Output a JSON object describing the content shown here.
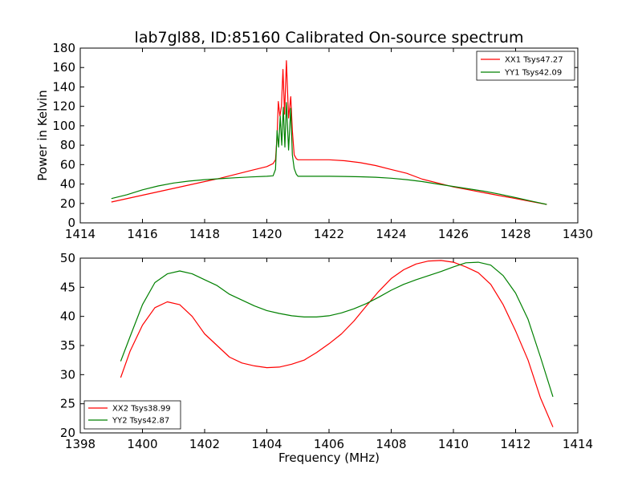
{
  "chart_data": [
    {
      "type": "line",
      "title": "lab7gl88, ID:85160 Calibrated On-source spectrum",
      "xlabel": "",
      "ylabel": "Power in Kelvin",
      "xlim": [
        1414,
        1430
      ],
      "ylim": [
        0,
        180
      ],
      "xticks": [
        1414,
        1416,
        1418,
        1420,
        1422,
        1424,
        1426,
        1428,
        1430
      ],
      "yticks": [
        0,
        20,
        40,
        60,
        80,
        100,
        120,
        140,
        160,
        180
      ],
      "grid": false,
      "legend": "top-right",
      "series": [
        {
          "name": "XX1 Tsys47.27",
          "color": "#ff0000",
          "points": [
            [
              1415.0,
              21.5
            ],
            [
              1416.0,
              28.5
            ],
            [
              1417.0,
              35.5
            ],
            [
              1418.0,
              42.5
            ],
            [
              1418.5,
              46
            ],
            [
              1419.0,
              50
            ],
            [
              1419.5,
              54
            ],
            [
              1420.0,
              58
            ],
            [
              1420.2,
              61
            ],
            [
              1420.28,
              65
            ],
            [
              1420.33,
              90
            ],
            [
              1420.37,
              125
            ],
            [
              1420.42,
              110
            ],
            [
              1420.47,
              120
            ],
            [
              1420.52,
              158
            ],
            [
              1420.57,
              112
            ],
            [
              1420.63,
              167
            ],
            [
              1420.7,
              108
            ],
            [
              1420.77,
              130
            ],
            [
              1420.82,
              95
            ],
            [
              1420.88,
              70
            ],
            [
              1420.95,
              66
            ],
            [
              1421.0,
              65
            ],
            [
              1421.5,
              65
            ],
            [
              1422.0,
              65
            ],
            [
              1422.5,
              64
            ],
            [
              1423.0,
              62
            ],
            [
              1423.5,
              59
            ],
            [
              1424.0,
              55
            ],
            [
              1424.5,
              51
            ],
            [
              1425.0,
              45
            ],
            [
              1425.5,
              41
            ],
            [
              1426.0,
              37
            ],
            [
              1426.5,
              34
            ],
            [
              1427.0,
              31
            ],
            [
              1427.5,
              28
            ],
            [
              1428.0,
              25
            ],
            [
              1428.5,
              22
            ],
            [
              1429.0,
              19
            ]
          ]
        },
        {
          "name": "YY1 Tsys42.09",
          "color": "#008000",
          "points": [
            [
              1415.0,
              25
            ],
            [
              1415.5,
              29
            ],
            [
              1416.0,
              34
            ],
            [
              1416.5,
              38
            ],
            [
              1417.0,
              41
            ],
            [
              1417.5,
              43
            ],
            [
              1418.0,
              44.5
            ],
            [
              1418.5,
              45.5
            ],
            [
              1419.0,
              46.5
            ],
            [
              1419.5,
              47.3
            ],
            [
              1420.0,
              48
            ],
            [
              1420.2,
              48.5
            ],
            [
              1420.28,
              55
            ],
            [
              1420.33,
              95
            ],
            [
              1420.38,
              78
            ],
            [
              1420.43,
              110
            ],
            [
              1420.48,
              80
            ],
            [
              1420.53,
              119
            ],
            [
              1420.58,
              78
            ],
            [
              1420.63,
              124
            ],
            [
              1420.7,
              75
            ],
            [
              1420.77,
              118
            ],
            [
              1420.82,
              70
            ],
            [
              1420.88,
              56
            ],
            [
              1420.95,
              50
            ],
            [
              1421.0,
              48
            ],
            [
              1421.5,
              48
            ],
            [
              1422.0,
              48
            ],
            [
              1422.5,
              47.8
            ],
            [
              1423.0,
              47.5
            ],
            [
              1423.5,
              47
            ],
            [
              1424.0,
              46
            ],
            [
              1424.5,
              44.5
            ],
            [
              1425.0,
              42.5
            ],
            [
              1425.5,
              40
            ],
            [
              1426.0,
              37.5
            ],
            [
              1426.5,
              35
            ],
            [
              1427.0,
              32.5
            ],
            [
              1427.5,
              29.5
            ],
            [
              1428.0,
              26
            ],
            [
              1428.5,
              22.5
            ],
            [
              1429.0,
              19
            ]
          ]
        }
      ]
    },
    {
      "type": "line",
      "title": "",
      "xlabel": "Frequency (MHz)",
      "ylabel": "",
      "xlim": [
        1398,
        1414
      ],
      "ylim": [
        20,
        50
      ],
      "xticks": [
        1398,
        1400,
        1402,
        1404,
        1406,
        1408,
        1410,
        1412,
        1414
      ],
      "yticks": [
        20,
        25,
        30,
        35,
        40,
        45,
        50
      ],
      "grid": false,
      "legend": "bottom-left",
      "series": [
        {
          "name": "XX2 Tsys38.99",
          "color": "#ff0000",
          "points": [
            [
              1399.3,
              29.5
            ],
            [
              1399.6,
              34
            ],
            [
              1400.0,
              38.5
            ],
            [
              1400.4,
              41.5
            ],
            [
              1400.8,
              42.5
            ],
            [
              1401.2,
              42
            ],
            [
              1401.6,
              40
            ],
            [
              1402.0,
              37
            ],
            [
              1402.4,
              35
            ],
            [
              1402.8,
              33
            ],
            [
              1403.2,
              32
            ],
            [
              1403.6,
              31.5
            ],
            [
              1404.0,
              31.2
            ],
            [
              1404.4,
              31.3
            ],
            [
              1404.8,
              31.8
            ],
            [
              1405.2,
              32.5
            ],
            [
              1405.6,
              33.8
            ],
            [
              1406.0,
              35.3
            ],
            [
              1406.4,
              37
            ],
            [
              1406.8,
              39.2
            ],
            [
              1407.2,
              41.8
            ],
            [
              1407.6,
              44.3
            ],
            [
              1408.0,
              46.5
            ],
            [
              1408.4,
              48
            ],
            [
              1408.8,
              49
            ],
            [
              1409.2,
              49.5
            ],
            [
              1409.6,
              49.6
            ],
            [
              1410.0,
              49.3
            ],
            [
              1410.4,
              48.5
            ],
            [
              1410.8,
              47.5
            ],
            [
              1411.2,
              45.5
            ],
            [
              1411.6,
              42
            ],
            [
              1412.0,
              37.5
            ],
            [
              1412.4,
              32.5
            ],
            [
              1412.8,
              26
            ],
            [
              1413.2,
              21
            ]
          ]
        },
        {
          "name": "YY2 Tsys42.87",
          "color": "#008000",
          "points": [
            [
              1399.3,
              32.3
            ],
            [
              1399.6,
              36.5
            ],
            [
              1400.0,
              42
            ],
            [
              1400.4,
              45.8
            ],
            [
              1400.8,
              47.3
            ],
            [
              1401.2,
              47.8
            ],
            [
              1401.6,
              47.3
            ],
            [
              1402.0,
              46.3
            ],
            [
              1402.4,
              45.3
            ],
            [
              1402.8,
              43.8
            ],
            [
              1403.2,
              42.8
            ],
            [
              1403.6,
              41.8
            ],
            [
              1404.0,
              41
            ],
            [
              1404.4,
              40.5
            ],
            [
              1404.8,
              40.1
            ],
            [
              1405.2,
              39.9
            ],
            [
              1405.6,
              39.9
            ],
            [
              1406.0,
              40.1
            ],
            [
              1406.4,
              40.6
            ],
            [
              1406.8,
              41.3
            ],
            [
              1407.2,
              42.2
            ],
            [
              1407.6,
              43.3
            ],
            [
              1408.0,
              44.5
            ],
            [
              1408.4,
              45.5
            ],
            [
              1408.8,
              46.3
            ],
            [
              1409.2,
              47
            ],
            [
              1409.6,
              47.7
            ],
            [
              1410.0,
              48.5
            ],
            [
              1410.4,
              49.2
            ],
            [
              1410.8,
              49.3
            ],
            [
              1411.2,
              48.8
            ],
            [
              1411.6,
              47
            ],
            [
              1412.0,
              44
            ],
            [
              1412.4,
              39.5
            ],
            [
              1412.8,
              33
            ],
            [
              1413.2,
              26.2
            ]
          ]
        }
      ]
    }
  ]
}
